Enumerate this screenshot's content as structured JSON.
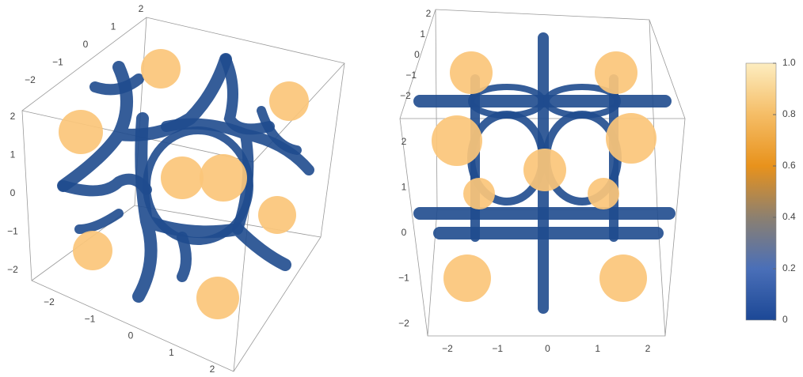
{
  "left_panel": {
    "axis_top": {
      "ticks": [
        {
          "value": 2,
          "label": "2"
        },
        {
          "value": 1,
          "label": "1"
        },
        {
          "value": 0,
          "label": "0"
        },
        {
          "value": -1,
          "label": "−1"
        },
        {
          "value": -2,
          "label": "−2"
        }
      ]
    },
    "axis_left": {
      "ticks": [
        {
          "value": 2,
          "label": "2"
        },
        {
          "value": 1,
          "label": "1"
        },
        {
          "value": 0,
          "label": "0"
        },
        {
          "value": -1,
          "label": "−1"
        },
        {
          "value": -2,
          "label": "−2"
        }
      ]
    },
    "axis_bottom": {
      "ticks": [
        {
          "value": -2,
          "label": "−2"
        },
        {
          "value": -1,
          "label": "−1"
        },
        {
          "value": 0,
          "label": "0"
        },
        {
          "value": 1,
          "label": "1"
        },
        {
          "value": 2,
          "label": "2"
        }
      ]
    }
  },
  "right_panel": {
    "axis_top": {
      "ticks": [
        {
          "value": 2,
          "label": "2"
        },
        {
          "value": 1,
          "label": "1"
        },
        {
          "value": 0,
          "label": "0"
        },
        {
          "value": -1,
          "label": "−1"
        },
        {
          "value": -2,
          "label": "−2"
        }
      ]
    },
    "axis_left": {
      "ticks": [
        {
          "value": 2,
          "label": "2"
        },
        {
          "value": 1,
          "label": "1"
        },
        {
          "value": 0,
          "label": "0"
        },
        {
          "value": -1,
          "label": "−1"
        },
        {
          "value": -2,
          "label": "−2"
        }
      ]
    },
    "axis_bottom": {
      "ticks": [
        {
          "value": -2,
          "label": "−2"
        },
        {
          "value": -1,
          "label": "−1"
        },
        {
          "value": 0,
          "label": "0"
        },
        {
          "value": 1,
          "label": "1"
        },
        {
          "value": 2,
          "label": "2"
        }
      ]
    }
  },
  "colorbar": {
    "range": [
      0,
      1
    ],
    "ticks": [
      {
        "value": 1,
        "label": "1.0"
      },
      0.8,
      0.6,
      0.4,
      0.2,
      0
    ]
  }
}
